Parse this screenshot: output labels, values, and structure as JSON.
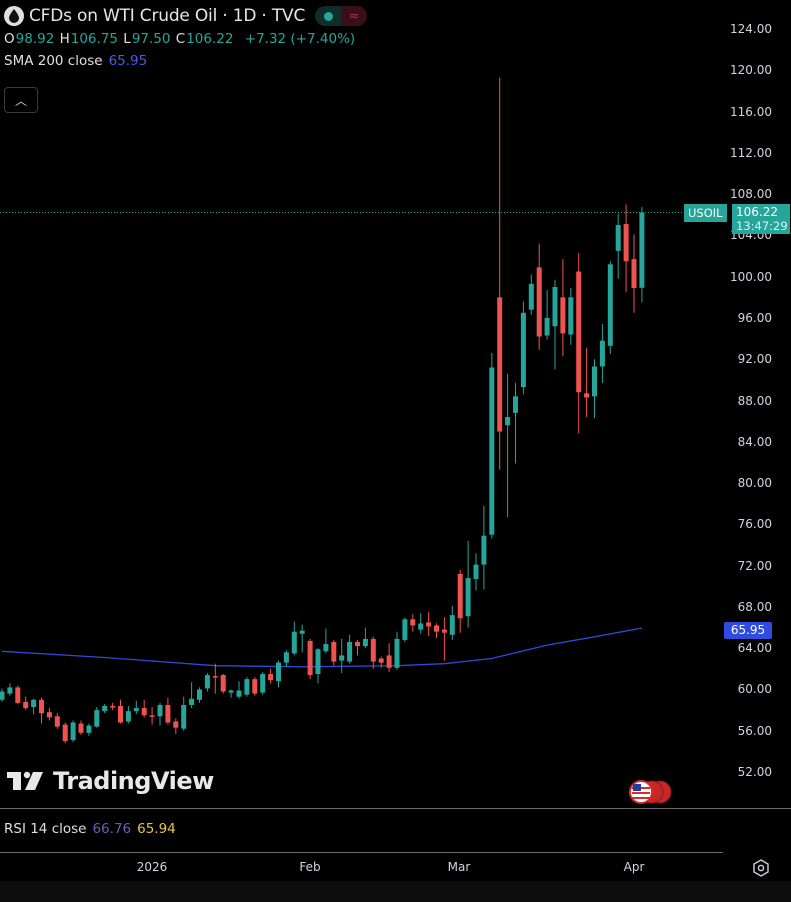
{
  "header": {
    "title": "CFDs on WTI Crude Oil · 1D · TVC",
    "symbol_icon": "oil-drop-icon",
    "market_status": "market-open-dot",
    "ohlc": {
      "o_label": "O",
      "o": "98.92",
      "h_label": "H",
      "h": "106.75",
      "l_label": "L",
      "l": "97.50",
      "c_label": "C",
      "c": "106.22",
      "change": "+7.32 (+7.40%)"
    },
    "sma": {
      "label": "SMA 200 close",
      "value": "65.95"
    },
    "collapse_icon": "chevron-up-icon"
  },
  "price_scale": {
    "labels": [
      "124.00",
      "120.00",
      "116.00",
      "112.00",
      "108.00",
      "104.00",
      "100.00",
      "96.00",
      "92.00",
      "88.00",
      "84.00",
      "80.00",
      "76.00",
      "72.00",
      "68.00",
      "64.00",
      "60.00",
      "56.00",
      "52.00"
    ],
    "symbol_tag": "USOIL",
    "last_price": "106.22",
    "countdown": "13:47:29",
    "sma_tag": "65.95"
  },
  "time_scale": {
    "labels": [
      "2026",
      "Feb",
      "Mar",
      "Apr"
    ]
  },
  "rsi": {
    "label": "RSI 14 close",
    "value": "66.76",
    "signal": "65.94"
  },
  "logo": "TradingView",
  "colors": {
    "up": "#26a69a",
    "down": "#ef5350",
    "sma": "#3048d8",
    "background": "#000000",
    "rsi": "#6a5fb8",
    "rsi_signal": "#e8c547"
  },
  "chart_data": {
    "type": "candlestick",
    "title": "CFDs on WTI Crude Oil · 1D · TVC",
    "ylim": [
      52,
      124
    ],
    "grid": false,
    "x_tick_labels": [
      {
        "label": "2026",
        "index": 19
      },
      {
        "label": "Feb",
        "index": 39
      },
      {
        "label": "Mar",
        "index": 58
      },
      {
        "label": "Apr",
        "index": 80
      }
    ],
    "ohlc_fields": [
      "open",
      "high",
      "low",
      "close"
    ],
    "candles": [
      [
        59.0,
        60.1,
        58.8,
        59.8
      ],
      [
        59.6,
        60.6,
        59.4,
        60.2
      ],
      [
        60.2,
        60.4,
        58.6,
        58.7
      ],
      [
        58.8,
        59.3,
        58.0,
        58.2
      ],
      [
        58.3,
        59.1,
        57.6,
        59.0
      ],
      [
        59.0,
        59.2,
        56.7,
        57.7
      ],
      [
        57.8,
        58.2,
        57.0,
        57.3
      ],
      [
        57.4,
        57.7,
        56.2,
        56.4
      ],
      [
        56.6,
        56.8,
        54.8,
        55.0
      ],
      [
        55.1,
        57.0,
        54.9,
        56.8
      ],
      [
        56.7,
        57.0,
        55.6,
        55.8
      ],
      [
        55.8,
        56.7,
        55.5,
        56.5
      ],
      [
        56.4,
        58.3,
        56.3,
        58.0
      ],
      [
        57.9,
        58.6,
        57.7,
        58.4
      ],
      [
        58.4,
        58.7,
        58.0,
        58.3
      ],
      [
        58.4,
        59.0,
        56.7,
        56.8
      ],
      [
        56.9,
        58.4,
        56.7,
        57.9
      ],
      [
        57.9,
        58.9,
        57.6,
        58.2
      ],
      [
        58.2,
        59.0,
        57.3,
        57.5
      ],
      [
        57.5,
        58.3,
        56.6,
        57.4
      ],
      [
        57.4,
        58.7,
        56.5,
        58.5
      ],
      [
        58.5,
        59.2,
        56.6,
        56.8
      ],
      [
        56.9,
        57.2,
        55.7,
        56.3
      ],
      [
        56.2,
        59.3,
        56.0,
        58.5
      ],
      [
        58.5,
        60.7,
        58.2,
        59.1
      ],
      [
        59.0,
        60.2,
        58.7,
        60.0
      ],
      [
        60.1,
        61.6,
        59.8,
        61.4
      ],
      [
        61.3,
        62.5,
        59.6,
        61.2
      ],
      [
        61.4,
        61.5,
        59.6,
        59.8
      ],
      [
        59.7,
        60.0,
        59.2,
        59.9
      ],
      [
        59.3,
        60.8,
        59.1,
        59.9
      ],
      [
        59.5,
        61.2,
        59.3,
        61.0
      ],
      [
        61.0,
        61.2,
        59.4,
        59.6
      ],
      [
        59.7,
        61.7,
        59.5,
        61.5
      ],
      [
        61.5,
        62.0,
        60.6,
        60.9
      ],
      [
        60.8,
        62.8,
        60.2,
        62.6
      ],
      [
        62.6,
        63.8,
        62.2,
        63.6
      ],
      [
        63.5,
        66.6,
        63.3,
        65.6
      ],
      [
        65.4,
        66.3,
        63.6,
        65.7
      ],
      [
        64.7,
        64.9,
        61.0,
        61.4
      ],
      [
        61.5,
        64.0,
        60.6,
        63.9
      ],
      [
        63.7,
        65.9,
        63.5,
        64.4
      ],
      [
        64.6,
        64.8,
        62.3,
        62.7
      ],
      [
        62.8,
        64.9,
        61.6,
        63.3
      ],
      [
        62.7,
        65.3,
        62.5,
        64.6
      ],
      [
        64.6,
        64.8,
        63.3,
        64.2
      ],
      [
        64.2,
        66.0,
        64.0,
        64.9
      ],
      [
        64.9,
        65.1,
        62.0,
        62.7
      ],
      [
        63.0,
        63.2,
        62.1,
        62.6
      ],
      [
        63.3,
        64.5,
        61.7,
        62.1
      ],
      [
        62.1,
        65.6,
        61.9,
        64.9
      ],
      [
        64.8,
        67.0,
        64.6,
        66.8
      ],
      [
        66.8,
        67.3,
        65.6,
        66.2
      ],
      [
        65.8,
        67.4,
        65.4,
        66.4
      ],
      [
        66.5,
        67.5,
        65.2,
        66.1
      ],
      [
        66.2,
        66.4,
        65.0,
        65.6
      ],
      [
        65.8,
        67.0,
        62.8,
        65.5
      ],
      [
        65.3,
        68.1,
        64.8,
        67.2
      ],
      [
        71.2,
        71.6,
        65.5,
        66.9
      ],
      [
        67.1,
        74.4,
        66.0,
        70.8
      ],
      [
        70.7,
        73.2,
        69.6,
        72.1
      ],
      [
        72.1,
        77.8,
        69.7,
        74.9
      ],
      [
        75.0,
        92.6,
        74.6,
        91.2
      ],
      [
        98.0,
        119.3,
        81.3,
        85.0
      ],
      [
        85.6,
        90.6,
        76.7,
        86.4
      ],
      [
        86.8,
        89.7,
        81.9,
        88.4
      ],
      [
        89.3,
        97.6,
        88.6,
        96.5
      ],
      [
        96.8,
        100.2,
        96.3,
        99.3
      ],
      [
        100.9,
        103.2,
        92.9,
        94.2
      ],
      [
        94.3,
        98.7,
        93.9,
        96.0
      ],
      [
        95.2,
        99.7,
        91.0,
        99.0
      ],
      [
        98.0,
        101.7,
        92.3,
        94.5
      ],
      [
        94.4,
        98.9,
        93.4,
        98.0
      ],
      [
        100.5,
        102.3,
        84.8,
        88.8
      ],
      [
        88.7,
        93.1,
        86.4,
        88.3
      ],
      [
        88.4,
        92.0,
        86.3,
        91.3
      ],
      [
        91.3,
        95.4,
        89.7,
        93.8
      ],
      [
        93.3,
        101.5,
        92.5,
        101.2
      ],
      [
        102.5,
        106.1,
        99.8,
        105.0
      ],
      [
        105.1,
        107.0,
        98.5,
        101.5
      ],
      [
        101.7,
        104.1,
        96.5,
        98.9
      ],
      [
        98.92,
        106.75,
        97.5,
        106.22
      ]
    ],
    "sma": {
      "name": "SMA 200 close",
      "points": [
        [
          0,
          63.7
        ],
        [
          13,
          63.1
        ],
        [
          27,
          62.3
        ],
        [
          38,
          62.2
        ],
        [
          50,
          62.3
        ],
        [
          56,
          62.5
        ],
        [
          62,
          63.0
        ],
        [
          69,
          64.3
        ],
        [
          75,
          65.1
        ],
        [
          81,
          65.95
        ]
      ]
    },
    "last_price_line": 106.22
  }
}
